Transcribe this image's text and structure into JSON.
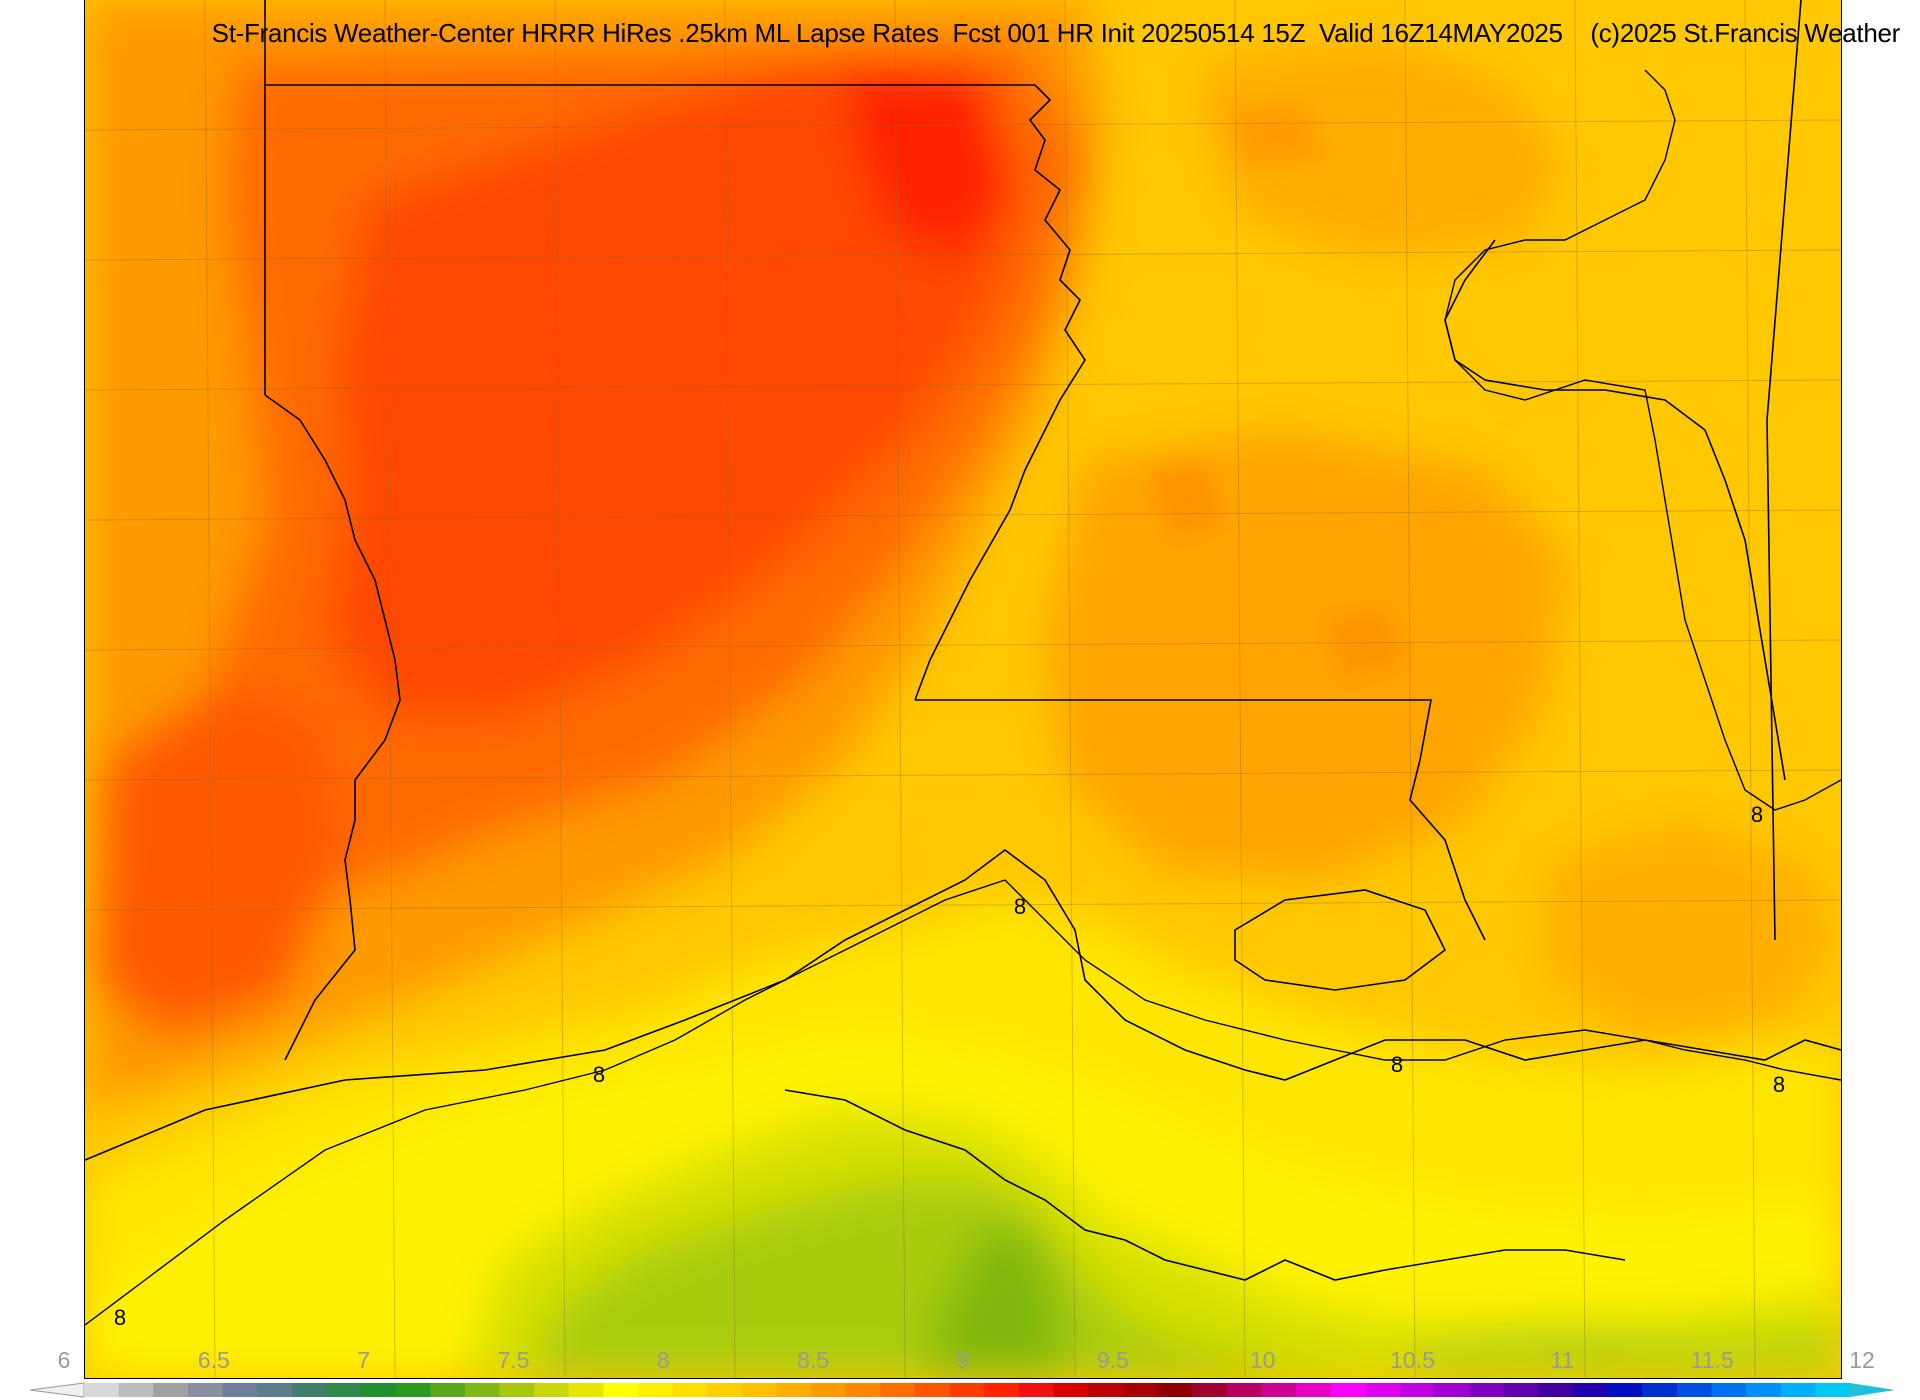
{
  "title": "St-Francis Weather-Center HRRR HiRes .25km ML Lapse Rates  Fcst 001 HR Init 20250514 15Z  Valid 16Z14MAY2025    (c)2025 St.Francis Weather",
  "contour_value_label": "8",
  "contour_labels": [
    "8",
    "8",
    "8",
    "8",
    "8",
    "8"
  ],
  "colorbar": {
    "tick_labels": [
      "6",
      "6.5",
      "7",
      "7.5",
      "8",
      "8.5",
      "9",
      "9.5",
      "10",
      "10.5",
      "11",
      "11.5",
      "12"
    ],
    "colors": [
      "#d8d8d8",
      "#bcbcbc",
      "#a0a0a0",
      "#8a8fa0",
      "#6f7f9a",
      "#5a7f8a",
      "#3f7f6a",
      "#2f8a4a",
      "#1f8f2f",
      "#2a9a1f",
      "#58a81a",
      "#7fb815",
      "#a6c80f",
      "#c8d80a",
      "#e6e600",
      "#ffff00",
      "#fff000",
      "#ffe000",
      "#ffd000",
      "#ffc000",
      "#ffae00",
      "#ff9a00",
      "#ff8400",
      "#ff6c00",
      "#ff5400",
      "#ff3c00",
      "#ff2400",
      "#f01010",
      "#d80000",
      "#c00000",
      "#a80000",
      "#900000",
      "#a00030",
      "#b80060",
      "#d00090",
      "#e800c0",
      "#ff00ff",
      "#e000f0",
      "#c000e0",
      "#a000d0",
      "#8000c0",
      "#6000b0",
      "#4000a0",
      "#2000b0",
      "#0010c0",
      "#0030d0",
      "#0050e0",
      "#0070f0",
      "#0090f8",
      "#00b0f8",
      "#00c8f0"
    ]
  },
  "legend_colors": {
    "below_6": "#f0f0f0",
    "above_12": "#20c0d8"
  }
}
